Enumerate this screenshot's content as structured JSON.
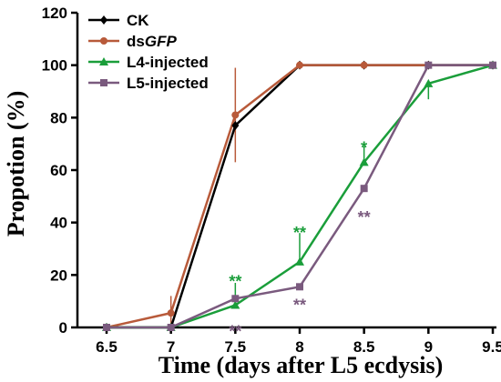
{
  "chart_data": {
    "type": "line",
    "xlabel": "Time (days after L5 ecdysis)",
    "ylabel": "Propotion (%)",
    "xlim": [
      6.5,
      9.5
    ],
    "ylim": [
      0,
      120
    ],
    "x_ticks": [
      "6.5",
      "7",
      "7.5",
      "8",
      "8.5",
      "9",
      "9.5"
    ],
    "y_ticks": [
      "0",
      "20",
      "40",
      "60",
      "80",
      "100",
      "120"
    ],
    "legend_position": "top-left",
    "grid": false,
    "series": [
      {
        "name": "CK",
        "name_suffix": "",
        "color": "#000000",
        "marker": "diamond",
        "points": [
          [
            6.5,
            0
          ],
          [
            7,
            0
          ],
          [
            7.5,
            77
          ],
          [
            8,
            100
          ],
          [
            8.5,
            100
          ],
          [
            9,
            100
          ],
          [
            9.5,
            100
          ]
        ],
        "errors": []
      },
      {
        "name": "ds",
        "name_suffix": "GFP",
        "color": "#b85a3a",
        "marker": "circle",
        "points": [
          [
            6.5,
            0
          ],
          [
            7,
            5.5
          ],
          [
            7.5,
            81
          ],
          [
            8,
            100
          ],
          [
            8.5,
            100
          ],
          [
            9,
            100
          ],
          [
            9.5,
            100
          ]
        ],
        "errors": [
          [
            7,
            0,
            12
          ],
          [
            7.5,
            63,
            99
          ]
        ]
      },
      {
        "name": "L4-injected",
        "name_suffix": "",
        "color": "#1a9e3a",
        "marker": "triangle",
        "points": [
          [
            6.5,
            0
          ],
          [
            7,
            0
          ],
          [
            7.5,
            8.5
          ],
          [
            8,
            25
          ],
          [
            8.5,
            63
          ],
          [
            9,
            93
          ],
          [
            9.5,
            100
          ]
        ],
        "errors": [
          [
            7.5,
            8.5,
            17
          ],
          [
            8,
            25,
            36
          ],
          [
            8.5,
            63,
            69
          ],
          [
            9,
            87,
            93
          ]
        ]
      },
      {
        "name": "L5-injected",
        "name_suffix": "",
        "color": "#7a5a7e",
        "marker": "square",
        "points": [
          [
            6.5,
            0
          ],
          [
            7,
            0
          ],
          [
            7.5,
            11
          ],
          [
            8,
            15.5
          ],
          [
            8.5,
            53
          ],
          [
            9,
            100
          ],
          [
            9.5,
            100
          ]
        ],
        "errors": []
      }
    ],
    "annotations": [
      {
        "x": 7.5,
        "y": 17.5,
        "text": "**",
        "color": "#1a9e3a"
      },
      {
        "x": 7.5,
        "y": -1.5,
        "text": "**",
        "color": "#7a5a7e"
      },
      {
        "x": 8,
        "y": 36,
        "text": "**",
        "color": "#1a9e3a"
      },
      {
        "x": 8,
        "y": 8.5,
        "text": "**",
        "color": "#7a5a7e"
      },
      {
        "x": 8.5,
        "y": 68.5,
        "text": "*",
        "color": "#1a9e3a"
      },
      {
        "x": 8.5,
        "y": 42,
        "text": "**",
        "color": "#7a5a7e"
      }
    ]
  }
}
